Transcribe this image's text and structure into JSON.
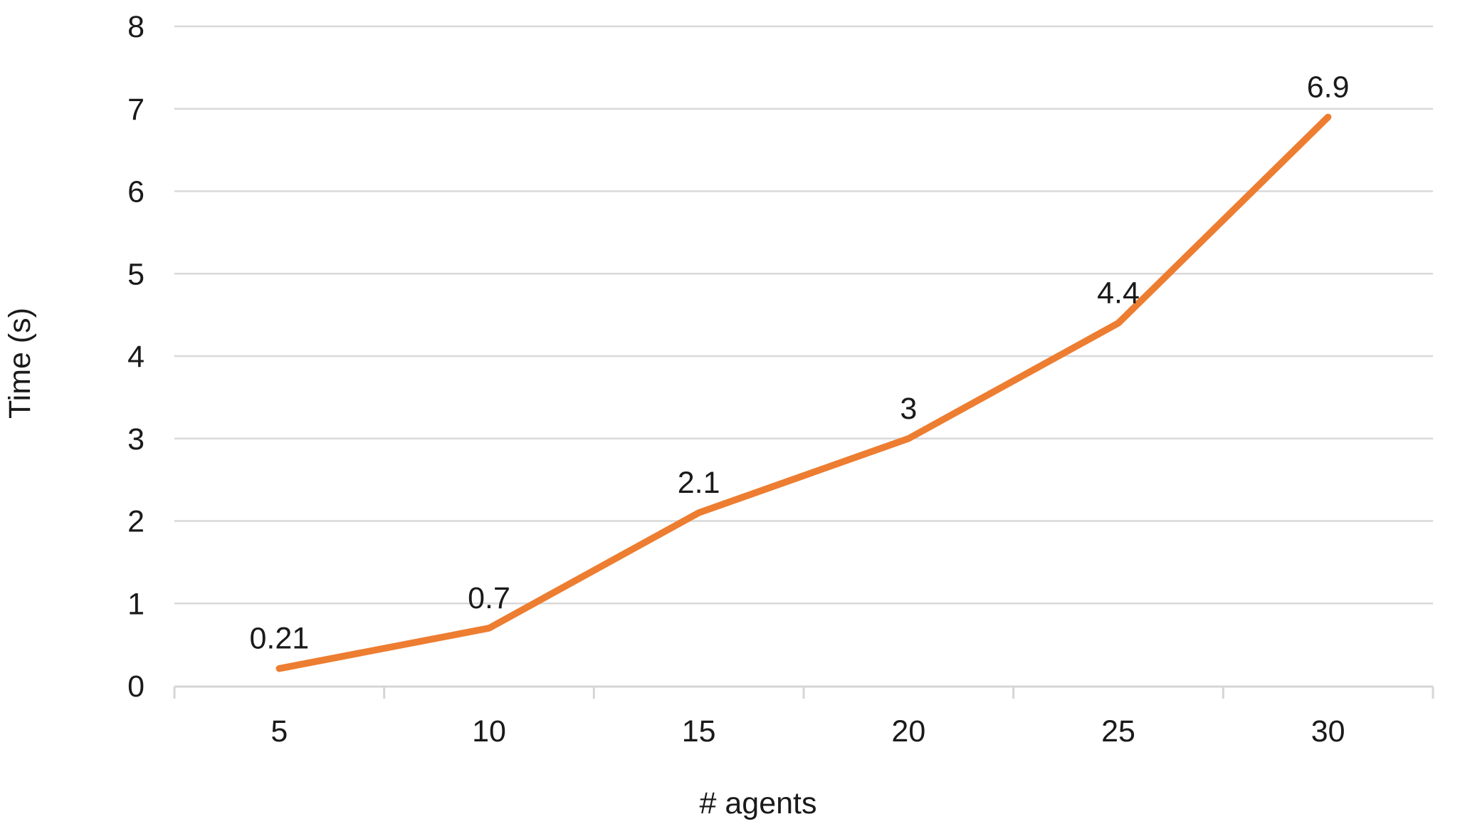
{
  "chart_data": {
    "type": "line",
    "title": "",
    "xlabel": "# agents",
    "ylabel": "Time (s)",
    "x": [
      5,
      10,
      15,
      20,
      25,
      30
    ],
    "xticks": [
      "5",
      "10",
      "15",
      "20",
      "25",
      "30"
    ],
    "series": [
      {
        "name": "time",
        "values": [
          0.21,
          0.7,
          2.1,
          3,
          4.4,
          6.9
        ],
        "point_labels": [
          "0.21",
          "0.7",
          "2.1",
          "3",
          "4.4",
          "6.9"
        ],
        "color": "#ED7D31"
      }
    ],
    "ylim": [
      0,
      8
    ],
    "ytick_step": 1,
    "yticks": [
      "0",
      "1",
      "2",
      "3",
      "4",
      "5",
      "6",
      "7",
      "8"
    ],
    "grid": true,
    "gridline_orientation": "horizontal",
    "legend_position": "none"
  },
  "colors": {
    "series_line": "#ED7D31",
    "gridline": "#D9D9D9",
    "axis_line": "#D6D6D6",
    "text": "#1a1a1a",
    "background": "#ffffff"
  }
}
